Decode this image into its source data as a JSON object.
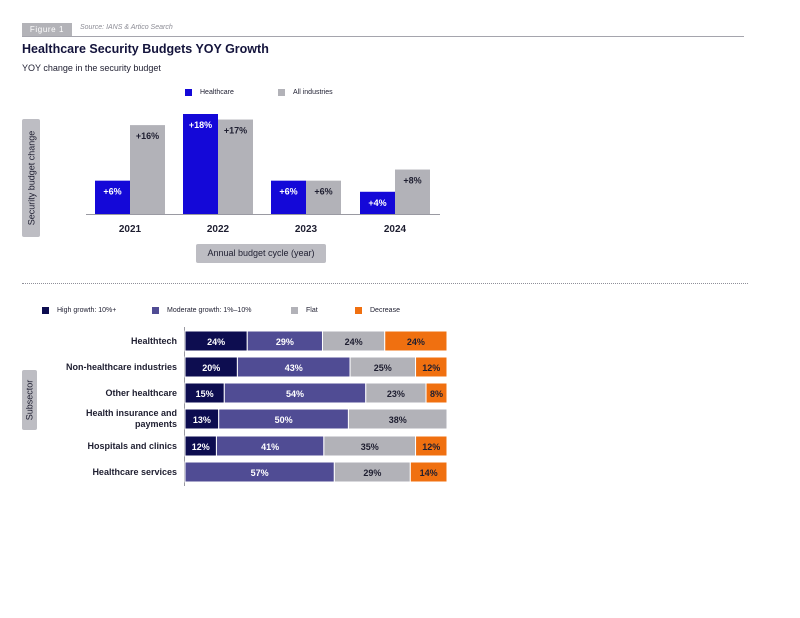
{
  "header": {
    "figure_tag": "Figure 1",
    "source": "Source: IANS & Artico Search",
    "title": "Healthcare Security Budgets YOY Growth",
    "subtitle": "YOY change in the security budget"
  },
  "colors": {
    "healthcare": "#1408d8",
    "all_industries": "#b2b2b8",
    "high_growth": "#0d0d50",
    "moderate_growth": "#504c94",
    "flat": "#b2b2b8",
    "decrease": "#f07010"
  },
  "chart_data": [
    {
      "type": "bar",
      "title": "YOY change in the security budget",
      "xlabel": "Annual budget cycle (year)",
      "ylabel": "Security budget change",
      "categories": [
        "2021",
        "2022",
        "2023",
        "2024"
      ],
      "series": [
        {
          "name": "Healthcare",
          "values": [
            6,
            18,
            6,
            4
          ],
          "labels": [
            "+6%",
            "+18%",
            "+6%",
            "+4%"
          ]
        },
        {
          "name": "All industries",
          "values": [
            16,
            17,
            6,
            8
          ],
          "labels": [
            "+16%",
            "+17%",
            "+6%",
            "+8%"
          ]
        }
      ],
      "ylim": [
        0,
        18
      ],
      "legend": "top-center"
    },
    {
      "type": "bar",
      "orientation": "horizontal",
      "stacked": true,
      "ylabel": "Subsector",
      "categories": [
        "Healthtech",
        "Non-healthcare industries",
        "Other healthcare",
        "Health insurance and payments",
        "Hospitals and clinics",
        "Healthcare services"
      ],
      "category_lines": [
        [
          "Healthtech"
        ],
        [
          "Non-healthcare industries"
        ],
        [
          "Other healthcare"
        ],
        [
          "Health insurance and",
          "payments"
        ],
        [
          "Hospitals and clinics"
        ],
        [
          "Healthcare services"
        ]
      ],
      "series": [
        {
          "name": "High growth: 10%+",
          "values": [
            24,
            20,
            15,
            13,
            12,
            0
          ]
        },
        {
          "name": "Moderate growth: 1%–10%",
          "values": [
            29,
            43,
            54,
            50,
            41,
            57
          ]
        },
        {
          "name": "Flat",
          "values": [
            24,
            25,
            23,
            38,
            35,
            29
          ]
        },
        {
          "name": "Decrease",
          "values": [
            24,
            12,
            8,
            0,
            12,
            14
          ]
        }
      ],
      "legend": "top-left"
    }
  ]
}
